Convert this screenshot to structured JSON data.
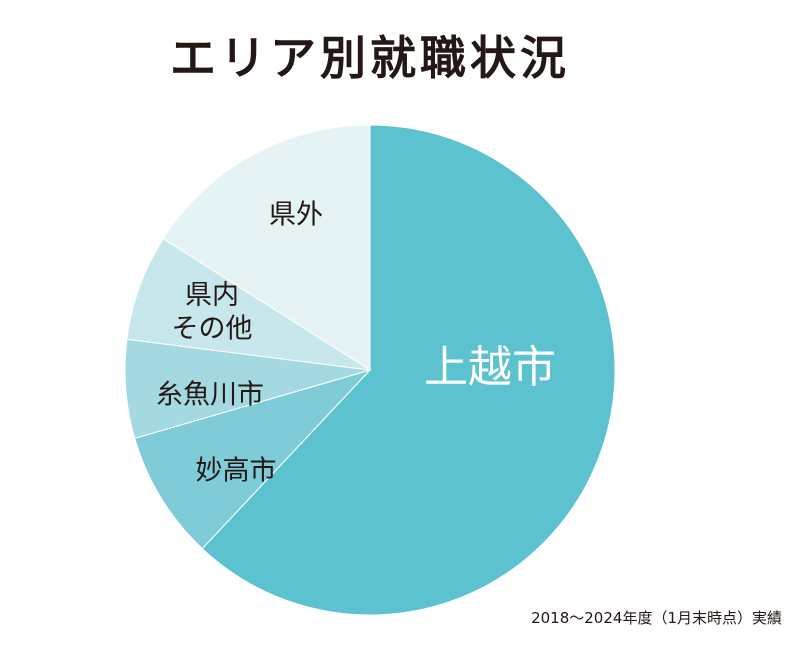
{
  "chart_data": {
    "type": "pie",
    "title": "エリア別就職状況",
    "slices": [
      {
        "label": "上越市",
        "value": 62,
        "color": "#5cc2d0",
        "label_color": "#ffffff"
      },
      {
        "label": "妙高市",
        "value": 8.5,
        "color": "#7fcbd7",
        "label_color": "#231815"
      },
      {
        "label": "糸魚川市",
        "value": 6.5,
        "color": "#a5d9e1",
        "label_color": "#231815"
      },
      {
        "label": "県内その他",
        "value": 7,
        "color": "#c8e7ec",
        "label_color": "#231815"
      },
      {
        "label": "県外",
        "value": 16,
        "color": "#e5f3f5",
        "label_color": "#231815"
      }
    ],
    "note": "2018〜2024年度（1月末時点）実績"
  }
}
